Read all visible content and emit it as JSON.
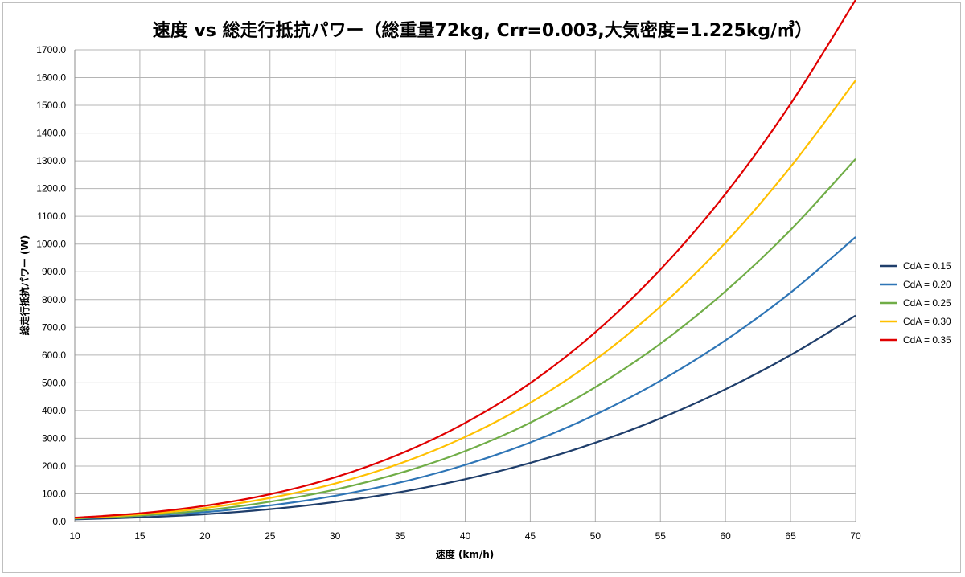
{
  "chart_data": {
    "type": "line",
    "title": "速度 vs 総走行抵抗パワー（総重量72kg, Crr=0.003,大気密度=1.225kg/㎥）",
    "xlabel": "速度 (km/h)",
    "ylabel": "総走行抵抗パワー (W)",
    "xlim": [
      10,
      70
    ],
    "ylim": [
      0,
      1700
    ],
    "x_ticks": [
      10,
      15,
      20,
      25,
      30,
      35,
      40,
      45,
      50,
      55,
      60,
      65,
      70
    ],
    "y_ticks": [
      "0.0",
      "100.0",
      "200.0",
      "300.0",
      "400.0",
      "500.0",
      "600.0",
      "700.0",
      "800.0",
      "900.0",
      "1000.0",
      "1100.0",
      "1200.0",
      "1300.0",
      "1400.0",
      "1500.0",
      "1600.0",
      "1700.0"
    ],
    "y_tick_values": [
      0,
      100,
      200,
      300,
      400,
      500,
      600,
      700,
      800,
      900,
      1000,
      1100,
      1200,
      1300,
      1400,
      1500,
      1600,
      1700
    ],
    "grid": true,
    "legend_position": "right",
    "x": [
      10,
      15,
      20,
      25,
      30,
      35,
      40,
      45,
      50,
      55,
      60,
      65,
      70
    ],
    "series": [
      {
        "name": "CdA = 0.15",
        "color": "#1f3e6b",
        "values": [
          7.9,
          15.0,
          26.5,
          44.5,
          70.6,
          106.1,
          152.5,
          211.3,
          284.0,
          372.0,
          476.8,
          599.8,
          742.4
        ]
      },
      {
        "name": "CdA = 0.20",
        "color": "#2e75b6",
        "values": [
          9.9,
          21.5,
          34.1,
          58.0,
          92.9,
          140.9,
          204.2,
          285.0,
          385.3,
          507.3,
          653.3,
          825.1,
          1025.4
        ]
      },
      {
        "name": "CdA = 0.25",
        "color": "#70ad47",
        "values": [
          11.0,
          21.7,
          40.4,
          71.5,
          115.1,
          174.9,
          253.8,
          356.3,
          484.3,
          641.1,
          830.0,
          1051.0,
          1307.0
        ]
      },
      {
        "name": "CdA = 0.30",
        "color": "#ffc000",
        "values": [
          12.5,
          25.7,
          48.6,
          85.1,
          137.2,
          209.3,
          305.0,
          428.0,
          583.3,
          775.0,
          1005.2,
          1278.0,
          1590.0
        ]
      },
      {
        "name": "CdA = 0.35",
        "color": "#e00000",
        "values": [
          14.0,
          29.6,
          56.8,
          98.5,
          159.4,
          243.7,
          355.3,
          499.0,
          682.3,
          908.3,
          1181.0,
          1505.0,
          1880.0
        ]
      }
    ]
  }
}
